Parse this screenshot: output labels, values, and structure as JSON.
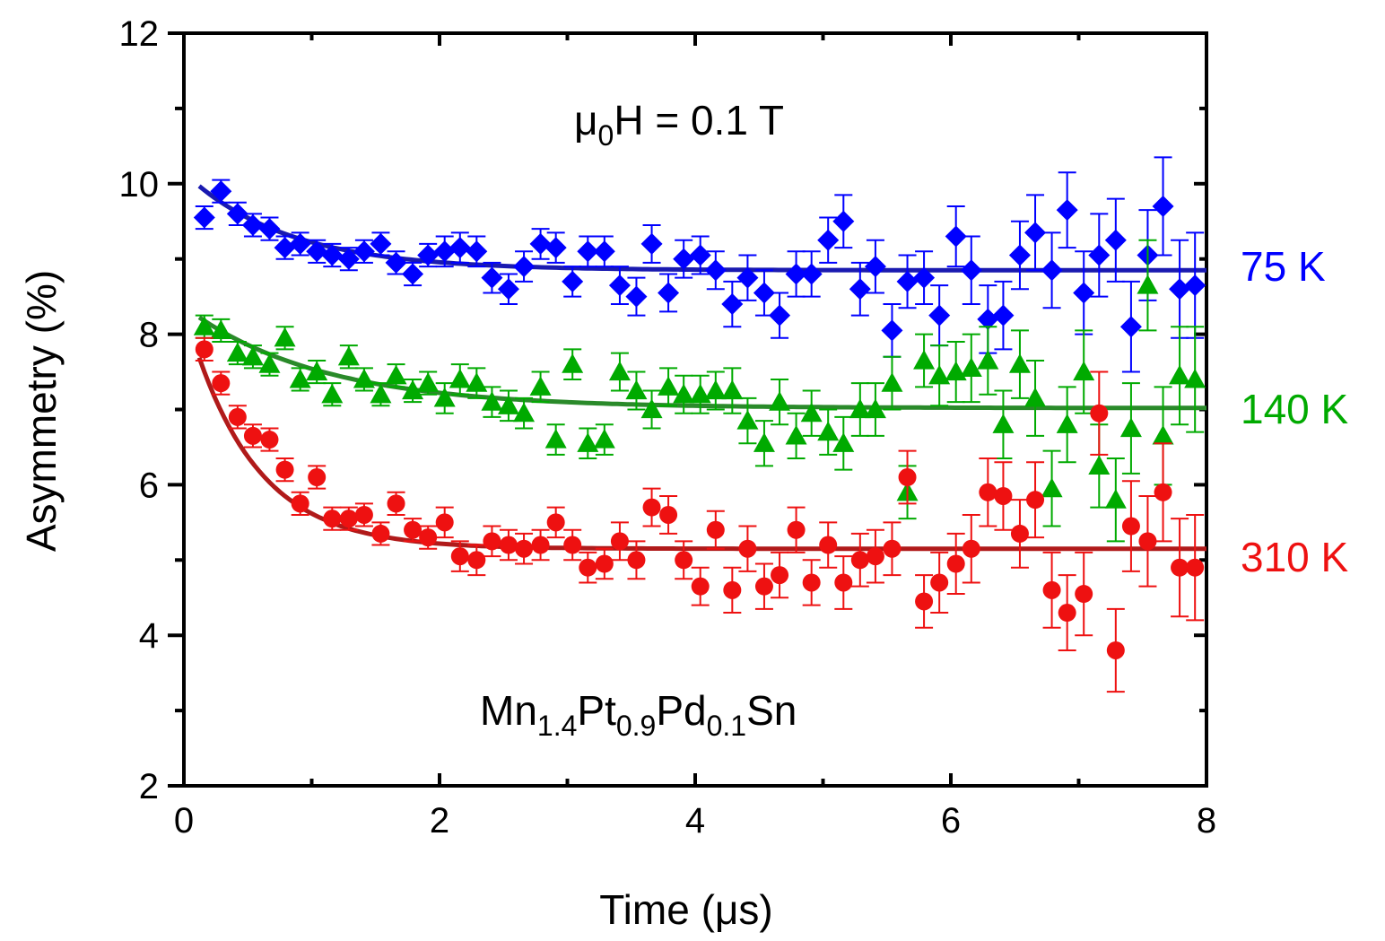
{
  "chart_data": {
    "type": "scatter",
    "xlabel": "Time (μs)",
    "ylabel": "Asymmetry (%)",
    "xlim": [
      0,
      8
    ],
    "ylim": [
      2,
      12
    ],
    "xticks": [
      0,
      2,
      4,
      6,
      8
    ],
    "yticks": [
      2,
      4,
      6,
      8,
      10,
      12
    ],
    "grid": false,
    "annotations": {
      "field": {
        "prefix": "μ",
        "sub": "0",
        "text": "H = 0.1 T"
      },
      "sample": {
        "parts": [
          {
            "text": "Mn",
            "sub": "1.4"
          },
          {
            "text": "Pt",
            "sub": "0.9"
          },
          {
            "text": "Pd",
            "sub": "0.1"
          },
          {
            "text": "Sn",
            "sub": ""
          }
        ]
      }
    },
    "series": [
      {
        "name": "75 K",
        "color": "#0000ff",
        "marker": "diamond",
        "fit": {
          "a0": 8.85,
          "a1": 1.3,
          "tau": 0.8
        },
        "x": [
          0.16,
          0.29,
          0.42,
          0.54,
          0.67,
          0.79,
          0.91,
          1.04,
          1.16,
          1.29,
          1.41,
          1.54,
          1.66,
          1.79,
          1.91,
          2.04,
          2.16,
          2.29,
          2.41,
          2.54,
          2.66,
          2.79,
          2.91,
          3.04,
          3.16,
          3.29,
          3.41,
          3.54,
          3.66,
          3.79,
          3.91,
          4.04,
          4.16,
          4.29,
          4.41,
          4.54,
          4.66,
          4.79,
          4.91,
          5.04,
          5.16,
          5.29,
          5.41,
          5.54,
          5.66,
          5.79,
          5.91,
          6.04,
          6.16,
          6.29,
          6.41,
          6.54,
          6.66,
          6.79,
          6.91,
          7.04,
          7.16,
          7.29,
          7.41,
          7.54,
          7.66,
          7.79,
          7.91
        ],
        "y": [
          9.55,
          9.9,
          9.6,
          9.45,
          9.4,
          9.15,
          9.2,
          9.1,
          9.05,
          9.0,
          9.1,
          9.2,
          8.95,
          8.8,
          9.05,
          9.1,
          9.15,
          9.1,
          8.75,
          8.6,
          8.9,
          9.2,
          9.15,
          8.7,
          9.1,
          9.1,
          8.65,
          8.5,
          9.2,
          8.55,
          9.0,
          9.05,
          8.85,
          8.4,
          8.75,
          8.55,
          8.25,
          8.8,
          8.8,
          9.25,
          9.5,
          8.6,
          8.9,
          8.05,
          8.7,
          8.75,
          8.25,
          9.3,
          8.85,
          8.2,
          8.25,
          9.05,
          9.35,
          8.85,
          9.65,
          8.55,
          9.05,
          9.25,
          8.1,
          9.05,
          9.7,
          8.6,
          8.65
        ],
        "err": [
          0.15,
          0.15,
          0.15,
          0.15,
          0.15,
          0.15,
          0.15,
          0.15,
          0.15,
          0.15,
          0.15,
          0.15,
          0.15,
          0.15,
          0.15,
          0.2,
          0.2,
          0.2,
          0.2,
          0.2,
          0.2,
          0.2,
          0.2,
          0.2,
          0.2,
          0.2,
          0.25,
          0.25,
          0.25,
          0.25,
          0.25,
          0.25,
          0.25,
          0.3,
          0.3,
          0.3,
          0.3,
          0.3,
          0.3,
          0.3,
          0.35,
          0.35,
          0.35,
          0.35,
          0.35,
          0.35,
          0.4,
          0.4,
          0.45,
          0.45,
          0.45,
          0.45,
          0.5,
          0.5,
          0.5,
          0.55,
          0.55,
          0.55,
          0.6,
          0.6,
          0.65,
          0.65,
          0.7
        ]
      },
      {
        "name": "140 K",
        "color": "#00aa00",
        "marker": "triangle",
        "fit": {
          "a0": 7.02,
          "a1": 1.35,
          "tau": 1.05
        },
        "x": [
          0.16,
          0.29,
          0.42,
          0.54,
          0.67,
          0.79,
          0.91,
          1.04,
          1.16,
          1.29,
          1.41,
          1.54,
          1.66,
          1.79,
          1.91,
          2.04,
          2.16,
          2.29,
          2.41,
          2.54,
          2.66,
          2.79,
          2.91,
          3.04,
          3.16,
          3.29,
          3.41,
          3.54,
          3.66,
          3.79,
          3.91,
          4.04,
          4.16,
          4.29,
          4.41,
          4.54,
          4.66,
          4.79,
          4.91,
          5.04,
          5.16,
          5.29,
          5.41,
          5.54,
          5.66,
          5.79,
          5.91,
          6.04,
          6.16,
          6.29,
          6.41,
          6.54,
          6.66,
          6.79,
          6.91,
          7.04,
          7.16,
          7.29,
          7.41,
          7.54,
          7.66,
          7.79,
          7.91
        ],
        "y": [
          8.1,
          8.05,
          7.75,
          7.7,
          7.6,
          7.95,
          7.4,
          7.5,
          7.2,
          7.7,
          7.4,
          7.2,
          7.45,
          7.25,
          7.35,
          7.15,
          7.4,
          7.35,
          7.1,
          7.05,
          6.95,
          7.3,
          6.6,
          7.6,
          6.55,
          6.6,
          7.5,
          7.25,
          7.0,
          7.3,
          7.2,
          7.2,
          7.25,
          7.25,
          6.85,
          6.55,
          7.1,
          6.65,
          6.95,
          6.7,
          6.55,
          7.0,
          7.0,
          7.35,
          5.9,
          7.65,
          7.45,
          7.5,
          7.55,
          7.65,
          6.8,
          7.6,
          7.15,
          5.95,
          6.8,
          7.5,
          6.25,
          5.8,
          6.75,
          8.65,
          6.65,
          7.45,
          7.4
        ],
        "err": [
          0.15,
          0.15,
          0.15,
          0.15,
          0.15,
          0.15,
          0.15,
          0.15,
          0.15,
          0.15,
          0.15,
          0.15,
          0.15,
          0.15,
          0.15,
          0.2,
          0.2,
          0.2,
          0.2,
          0.2,
          0.2,
          0.2,
          0.2,
          0.2,
          0.2,
          0.2,
          0.25,
          0.25,
          0.25,
          0.25,
          0.25,
          0.25,
          0.25,
          0.3,
          0.3,
          0.3,
          0.3,
          0.3,
          0.3,
          0.3,
          0.35,
          0.35,
          0.35,
          0.35,
          0.35,
          0.35,
          0.4,
          0.4,
          0.45,
          0.45,
          0.45,
          0.45,
          0.5,
          0.5,
          0.5,
          0.55,
          0.55,
          0.55,
          0.6,
          0.6,
          0.65,
          0.65,
          0.7
        ]
      },
      {
        "name": "310 K",
        "color": "#ee1111",
        "marker": "circle",
        "fit": {
          "a0": 5.15,
          "a1": 3.2,
          "tau": 0.52
        },
        "x": [
          0.16,
          0.29,
          0.42,
          0.54,
          0.67,
          0.79,
          0.91,
          1.04,
          1.16,
          1.29,
          1.41,
          1.54,
          1.66,
          1.79,
          1.91,
          2.04,
          2.16,
          2.29,
          2.41,
          2.54,
          2.66,
          2.79,
          2.91,
          3.04,
          3.16,
          3.29,
          3.41,
          3.54,
          3.66,
          3.79,
          3.91,
          4.04,
          4.16,
          4.29,
          4.41,
          4.54,
          4.66,
          4.79,
          4.91,
          5.04,
          5.16,
          5.29,
          5.41,
          5.54,
          5.66,
          5.79,
          5.91,
          6.04,
          6.16,
          6.29,
          6.41,
          6.54,
          6.66,
          6.79,
          6.91,
          7.04,
          7.16,
          7.29,
          7.41,
          7.54,
          7.66,
          7.79,
          7.91
        ],
        "y": [
          7.8,
          7.35,
          6.9,
          6.65,
          6.6,
          6.2,
          5.75,
          6.1,
          5.55,
          5.55,
          5.6,
          5.35,
          5.75,
          5.4,
          5.3,
          5.5,
          5.05,
          5.0,
          5.25,
          5.2,
          5.15,
          5.2,
          5.5,
          5.2,
          4.9,
          4.95,
          5.25,
          5.0,
          5.7,
          5.6,
          5.0,
          4.65,
          5.4,
          4.6,
          5.15,
          4.65,
          4.8,
          5.4,
          4.7,
          5.2,
          4.7,
          5.0,
          5.05,
          5.15,
          6.1,
          4.45,
          4.7,
          4.95,
          5.15,
          5.9,
          5.85,
          5.35,
          5.8,
          4.6,
          4.3,
          4.55,
          6.95,
          3.8,
          5.45,
          5.25,
          5.9,
          4.9,
          4.9
        ],
        "err": [
          0.15,
          0.15,
          0.15,
          0.15,
          0.15,
          0.15,
          0.15,
          0.15,
          0.15,
          0.15,
          0.15,
          0.15,
          0.15,
          0.15,
          0.15,
          0.2,
          0.2,
          0.2,
          0.2,
          0.2,
          0.2,
          0.2,
          0.2,
          0.2,
          0.2,
          0.2,
          0.25,
          0.25,
          0.25,
          0.25,
          0.25,
          0.25,
          0.25,
          0.3,
          0.3,
          0.3,
          0.3,
          0.3,
          0.3,
          0.3,
          0.35,
          0.35,
          0.35,
          0.35,
          0.35,
          0.35,
          0.4,
          0.4,
          0.45,
          0.45,
          0.45,
          0.45,
          0.5,
          0.5,
          0.5,
          0.55,
          0.55,
          0.55,
          0.6,
          0.6,
          0.65,
          0.65,
          0.7
        ]
      }
    ]
  }
}
